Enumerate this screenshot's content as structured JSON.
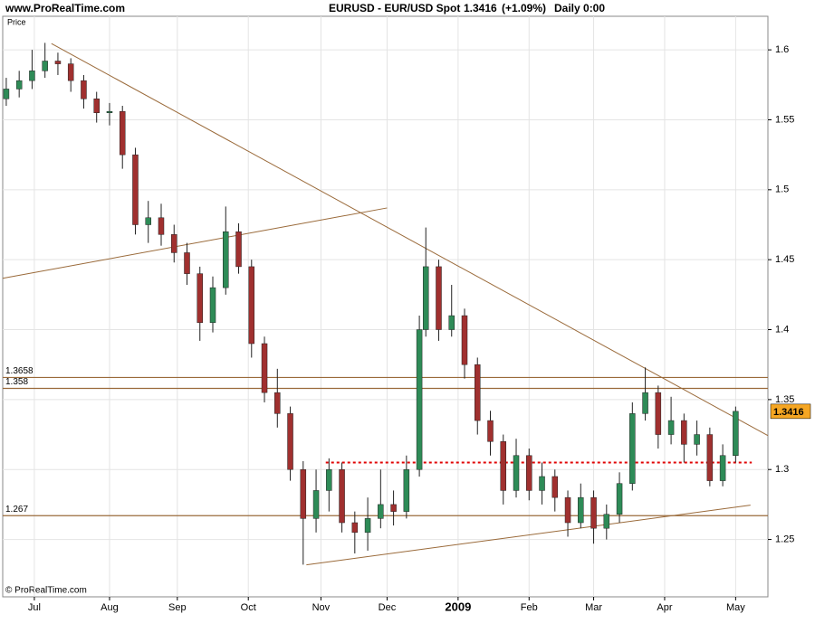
{
  "chart_data": {
    "type": "candlestick",
    "header": {
      "site": "www.ProRealTime.com",
      "instrument": "EURUSD - EUR/USD Spot",
      "change": "(+1.09%)",
      "period": "Daily  0:00"
    },
    "price_label": "Price",
    "copyright": "© ProRealTime.com",
    "last_price": 1.3416,
    "up_color": "#2e8b57",
    "down_color": "#a0302f",
    "line_color": "#9a6a3a",
    "support_color": "#e00000",
    "x": [
      0,
      4,
      8,
      12,
      16,
      20,
      24,
      28,
      32,
      36,
      40,
      44,
      48,
      52,
      56,
      60,
      64,
      68,
      72,
      76,
      80,
      84,
      88,
      92,
      96,
      100,
      104,
      108,
      112,
      116,
      120,
      124,
      128,
      130,
      134,
      138,
      142,
      146,
      150,
      154,
      158,
      162,
      166,
      170,
      174,
      178,
      182,
      186,
      190,
      194,
      198,
      202,
      206,
      210,
      214,
      218,
      222,
      226
    ],
    "open": [
      1.565,
      1.572,
      1.578,
      1.585,
      1.592,
      1.59,
      1.578,
      1.565,
      1.555,
      1.556,
      1.525,
      1.475,
      1.48,
      1.468,
      1.455,
      1.44,
      1.405,
      1.43,
      1.47,
      1.445,
      1.39,
      1.355,
      1.34,
      1.3,
      1.265,
      1.285,
      1.3,
      1.262,
      1.255,
      1.265,
      1.275,
      1.27,
      1.3,
      1.4,
      1.445,
      1.4,
      1.41,
      1.375,
      1.335,
      1.32,
      1.285,
      1.31,
      1.285,
      1.295,
      1.28,
      1.262,
      1.28,
      1.258,
      1.268,
      1.29,
      1.34,
      1.355,
      1.325,
      1.335,
      1.318,
      1.325,
      1.292,
      1.31
    ],
    "high": [
      1.58,
      1.585,
      1.6,
      1.605,
      1.598,
      1.594,
      1.582,
      1.57,
      1.562,
      1.56,
      1.53,
      1.492,
      1.49,
      1.475,
      1.462,
      1.445,
      1.438,
      1.488,
      1.476,
      1.45,
      1.395,
      1.372,
      1.345,
      1.306,
      1.3,
      1.308,
      1.305,
      1.27,
      1.28,
      1.3,
      1.285,
      1.31,
      1.41,
      1.473,
      1.45,
      1.432,
      1.415,
      1.38,
      1.342,
      1.325,
      1.322,
      1.315,
      1.305,
      1.3,
      1.285,
      1.29,
      1.285,
      1.275,
      1.298,
      1.348,
      1.373,
      1.36,
      1.352,
      1.34,
      1.335,
      1.33,
      1.318,
      1.345
    ],
    "low": [
      1.56,
      1.566,
      1.572,
      1.58,
      1.582,
      1.57,
      1.558,
      1.548,
      1.546,
      1.515,
      1.468,
      1.462,
      1.46,
      1.448,
      1.432,
      1.392,
      1.398,
      1.425,
      1.44,
      1.38,
      1.348,
      1.33,
      1.292,
      1.232,
      1.255,
      1.27,
      1.255,
      1.24,
      1.242,
      1.258,
      1.26,
      1.265,
      1.295,
      1.395,
      1.392,
      1.395,
      1.365,
      1.325,
      1.31,
      1.275,
      1.28,
      1.278,
      1.275,
      1.27,
      1.252,
      1.258,
      1.247,
      1.25,
      1.262,
      1.285,
      1.335,
      1.315,
      1.318,
      1.305,
      1.31,
      1.288,
      1.288,
      1.305
    ],
    "close": [
      1.572,
      1.578,
      1.585,
      1.592,
      1.59,
      1.578,
      1.565,
      1.555,
      1.556,
      1.525,
      1.475,
      1.48,
      1.468,
      1.455,
      1.44,
      1.405,
      1.43,
      1.47,
      1.445,
      1.39,
      1.355,
      1.34,
      1.3,
      1.265,
      1.285,
      1.3,
      1.262,
      1.255,
      1.265,
      1.275,
      1.27,
      1.3,
      1.4,
      1.445,
      1.4,
      1.41,
      1.375,
      1.335,
      1.32,
      1.285,
      1.31,
      1.285,
      1.295,
      1.28,
      1.262,
      1.28,
      1.258,
      1.268,
      1.29,
      1.34,
      1.355,
      1.325,
      1.335,
      1.318,
      1.325,
      1.292,
      1.31,
      1.3416
    ],
    "xlim": [
      -1.1,
      236
    ],
    "xticks": [
      {
        "value": 8.7,
        "label": "Jul"
      },
      {
        "value": 32,
        "label": "Aug"
      },
      {
        "value": 53,
        "label": "Sep"
      },
      {
        "value": 75,
        "label": "Oct"
      },
      {
        "value": 97.5,
        "label": "Nov"
      },
      {
        "value": 118,
        "label": "Dec"
      },
      {
        "value": 140,
        "label": "2009"
      },
      {
        "value": 162,
        "label": "Feb"
      },
      {
        "value": 182,
        "label": "Mar"
      },
      {
        "value": 204,
        "label": "Apr"
      },
      {
        "value": 226,
        "label": "May"
      }
    ],
    "ylim": [
      1.209,
      1.624
    ],
    "yticks": [
      1.25,
      1.3,
      1.35,
      1.4,
      1.45,
      1.5,
      1.55,
      1.6
    ],
    "grid": true,
    "levels": [
      1.3658,
      1.358,
      1.267
    ],
    "support": {
      "value": 1.305,
      "x": [
        99,
        231
      ]
    },
    "trendlines": [
      {
        "x": [
          14,
          236
        ],
        "y": [
          1.6045,
          1.3243
        ]
      },
      {
        "x": [
          -1.1,
          118
        ],
        "y": [
          1.4367,
          1.487
        ]
      },
      {
        "x": [
          93,
          230.6
        ],
        "y": [
          1.2319,
          1.2745
        ]
      }
    ]
  }
}
